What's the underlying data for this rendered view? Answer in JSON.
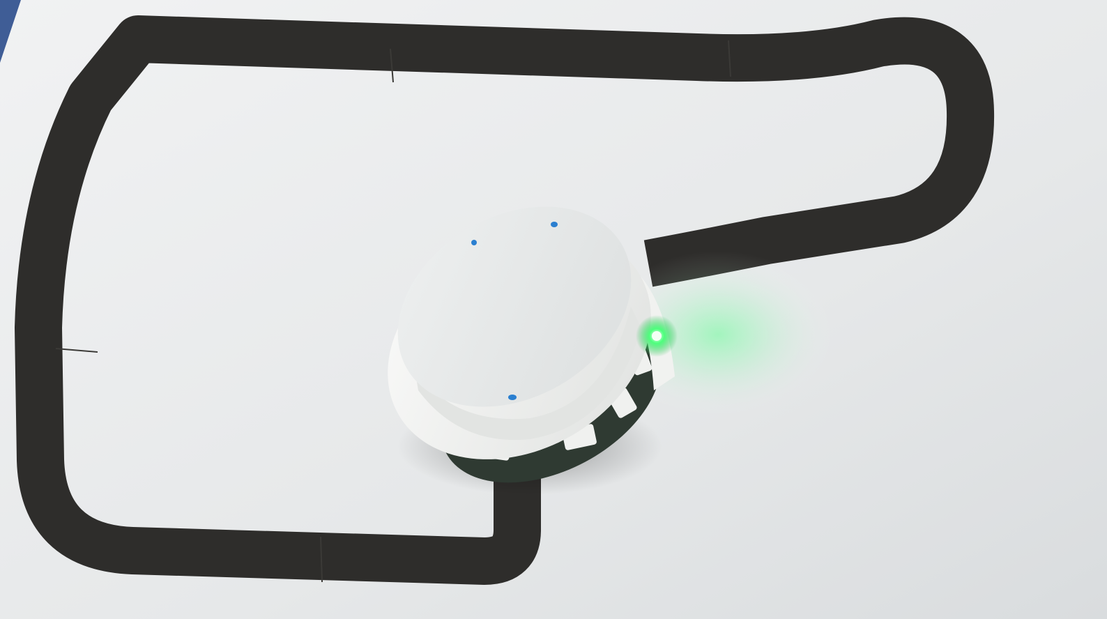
{
  "photo": {
    "colors": {
      "paper": "#e9ebec",
      "paper_shadow": "#d4d7d9",
      "track": "#2e2d2b",
      "robot_shell": "#f2f3f1",
      "robot_inner": "#e4e6e6",
      "pcb": "#2f3a32",
      "led": "#37ff6a",
      "led_glow": "#6bff9a",
      "marker": "#2a7fd0"
    },
    "elements": [
      "paper-sheet",
      "line-track",
      "line-following-robot",
      "status-led"
    ]
  }
}
